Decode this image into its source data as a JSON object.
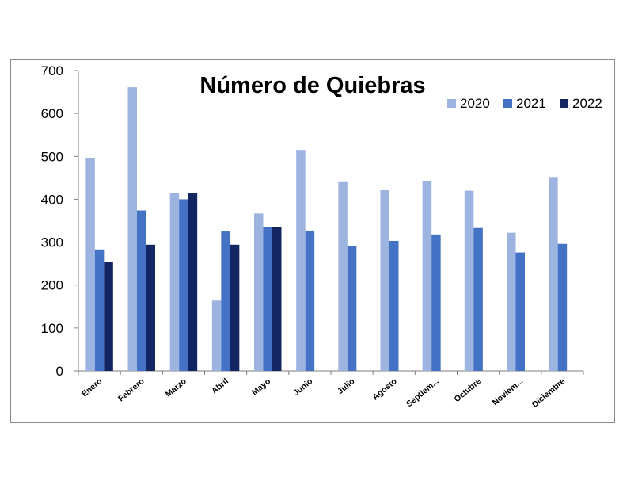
{
  "chart_data": {
    "type": "bar",
    "title": "Número de Quiebras",
    "categories": [
      "Enero",
      "Febrero",
      "Marzo",
      "Abril",
      "Mayo",
      "Junio",
      "Julio",
      "Agosto",
      "Septiem...",
      "Octubre",
      "Noviem...",
      "Diciembre"
    ],
    "series": [
      {
        "name": "2020",
        "color": "#9db3e0",
        "values": [
          495,
          661,
          414,
          164,
          367,
          515,
          440,
          421,
          443,
          420,
          322,
          452
        ]
      },
      {
        "name": "2021",
        "color": "#4472c4",
        "values": [
          283,
          374,
          400,
          325,
          335,
          327,
          291,
          303,
          318,
          333,
          276,
          296
        ]
      },
      {
        "name": "2022",
        "color": "#142661",
        "values": [
          254,
          294,
          414,
          294,
          335,
          null,
          null,
          null,
          null,
          null,
          null,
          null
        ]
      }
    ],
    "ylim": [
      0,
      700
    ],
    "yticks": [
      0,
      100,
      200,
      300,
      400,
      500,
      600,
      700
    ],
    "grid": false,
    "legend_position": "top-right"
  }
}
